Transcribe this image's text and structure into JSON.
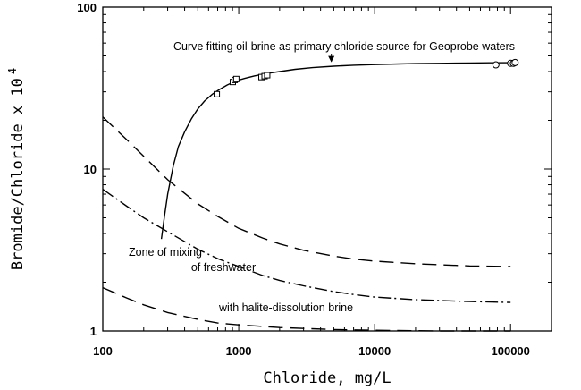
{
  "chart_data": {
    "type": "line",
    "title": "",
    "xlabel": "Chloride, mg/L",
    "ylabel_main": "Bromide/Chloride x 10",
    "ylabel_exponent": "4",
    "x_scale": "log",
    "y_scale": "log",
    "xlim": [
      100,
      200000
    ],
    "ylim": [
      1,
      100
    ],
    "grid": false,
    "x_ticks": [
      {
        "value": 100,
        "label": "100"
      },
      {
        "value": 1000,
        "label": "1000"
      },
      {
        "value": 10000,
        "label": "10000"
      },
      {
        "value": 100000,
        "label": "100000"
      }
    ],
    "y_ticks": [
      {
        "value": 1,
        "label": "1"
      },
      {
        "value": 10,
        "label": "10"
      },
      {
        "value": 100,
        "label": "100"
      }
    ],
    "series": [
      {
        "key": "fit",
        "style": "solid",
        "x": [
          270,
          285,
          300,
          330,
          360,
          400,
          450,
          500,
          560,
          640,
          720,
          820,
          950,
          1100,
          1300,
          1600,
          2000,
          2600,
          3500,
          5000,
          7000,
          10000,
          15000,
          20000,
          30000,
          50000,
          70000,
          100000
        ],
        "y": [
          3.7,
          5.2,
          7.0,
          10.5,
          13.8,
          17.0,
          20.5,
          23.5,
          26.3,
          29.0,
          31.0,
          33.0,
          35.0,
          36.3,
          37.6,
          38.9,
          40.0,
          41.3,
          42.3,
          43.2,
          43.8,
          44.2,
          44.6,
          44.8,
          45.0,
          45.2,
          45.3,
          45.4
        ]
      },
      {
        "key": "mix-upper",
        "style": "long-dash",
        "x": [
          100,
          150,
          200,
          300,
          500,
          700,
          1000,
          1500,
          2000,
          3000,
          5000,
          7000,
          10000,
          20000,
          50000,
          100000
        ],
        "y": [
          21.0,
          15.2,
          12.0,
          8.6,
          6.1,
          5.1,
          4.3,
          3.75,
          3.45,
          3.15,
          2.9,
          2.78,
          2.7,
          2.6,
          2.52,
          2.5
        ]
      },
      {
        "key": "mix-middle",
        "style": "dash-dot",
        "x": [
          100,
          150,
          200,
          300,
          500,
          700,
          1000,
          1500,
          2000,
          3000,
          5000,
          7000,
          10000,
          20000,
          50000,
          100000
        ],
        "y": [
          7.5,
          5.9,
          5.0,
          4.1,
          3.2,
          2.8,
          2.5,
          2.2,
          2.05,
          1.9,
          1.75,
          1.68,
          1.62,
          1.56,
          1.52,
          1.5
        ]
      },
      {
        "key": "mix-lower",
        "style": "long-dash",
        "x": [
          100,
          150,
          200,
          300,
          500,
          700,
          1000,
          2000,
          5000,
          10000,
          30000,
          100000
        ],
        "y": [
          1.85,
          1.6,
          1.45,
          1.3,
          1.18,
          1.12,
          1.09,
          1.05,
          1.02,
          1.01,
          1.0,
          1.0
        ]
      }
    ],
    "markers": [
      {
        "x": 690,
        "y": 29,
        "shape": "square"
      },
      {
        "x": 905,
        "y": 34.5,
        "shape": "square"
      },
      {
        "x": 935,
        "y": 35.5,
        "shape": "square"
      },
      {
        "x": 960,
        "y": 36,
        "shape": "square"
      },
      {
        "x": 1470,
        "y": 37,
        "shape": "square"
      },
      {
        "x": 1550,
        "y": 37.5,
        "shape": "square"
      },
      {
        "x": 1620,
        "y": 38,
        "shape": "square"
      },
      {
        "x": 78000,
        "y": 44,
        "shape": "circle"
      },
      {
        "x": 100000,
        "y": 45,
        "shape": "circle"
      },
      {
        "x": 105000,
        "y": 45,
        "shape": "circle"
      },
      {
        "x": 108000,
        "y": 45.5,
        "shape": "circle"
      }
    ],
    "annotations": [
      {
        "text": "Curve fitting oil-brine as primary chloride source for Geoprobe waters",
        "x": 385,
        "y": 56,
        "arrow_to": {
          "x": 4800,
          "y": 44.5
        }
      },
      {
        "text": "Zone of mixing",
        "x": 185,
        "y": 286
      },
      {
        "text": "of freshwater",
        "x": 250,
        "y": 303
      },
      {
        "text": "with halite-dissolution brine",
        "x": 320,
        "y": 348
      }
    ]
  }
}
